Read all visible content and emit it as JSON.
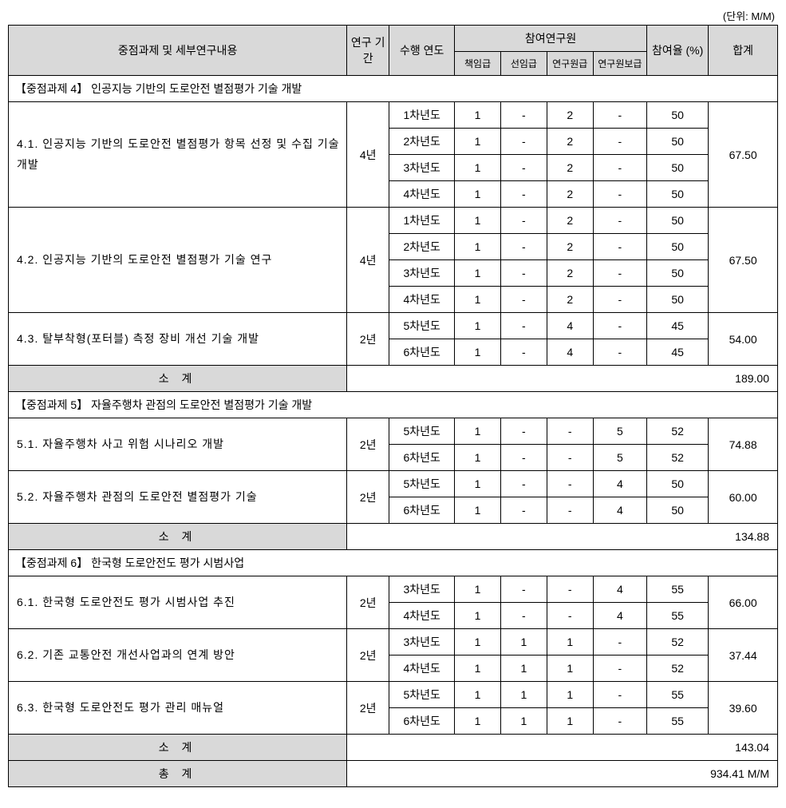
{
  "unit_label": "(단위: M/M)",
  "header": {
    "title": "중점과제 및 세부연구내용",
    "period": "연구 기간",
    "year": "수행 연도",
    "researchers": "참여연구원",
    "r1": "책임급",
    "r2": "선임급",
    "r3": "연구원급",
    "r4": "연구원보급",
    "rate": "참여율 (%)",
    "total": "합계"
  },
  "sections": [
    {
      "title": "【중점과제 4】 인공지능 기반의 도로안전 별점평가 기술 개발",
      "items": [
        {
          "label": "4.1. 인공지능 기반의 도로안전 별점평가 항목 선정 및 수집 기술 개발",
          "period": "4년",
          "total": "67.50",
          "rows": [
            {
              "year": "1차년도",
              "v": [
                "1",
                "-",
                "2",
                "-"
              ],
              "rate": "50"
            },
            {
              "year": "2차년도",
              "v": [
                "1",
                "-",
                "2",
                "-"
              ],
              "rate": "50"
            },
            {
              "year": "3차년도",
              "v": [
                "1",
                "-",
                "2",
                "-"
              ],
              "rate": "50"
            },
            {
              "year": "4차년도",
              "v": [
                "1",
                "-",
                "2",
                "-"
              ],
              "rate": "50"
            }
          ]
        },
        {
          "label": "4.2. 인공지능 기반의 도로안전 별점평가 기술 연구",
          "period": "4년",
          "total": "67.50",
          "rows": [
            {
              "year": "1차년도",
              "v": [
                "1",
                "-",
                "2",
                "-"
              ],
              "rate": "50"
            },
            {
              "year": "2차년도",
              "v": [
                "1",
                "-",
                "2",
                "-"
              ],
              "rate": "50"
            },
            {
              "year": "3차년도",
              "v": [
                "1",
                "-",
                "2",
                "-"
              ],
              "rate": "50"
            },
            {
              "year": "4차년도",
              "v": [
                "1",
                "-",
                "2",
                "-"
              ],
              "rate": "50"
            }
          ]
        },
        {
          "label": "4.3. 탈부착형(포터블) 측정 장비 개선 기술 개발",
          "period": "2년",
          "total": "54.00",
          "rows": [
            {
              "year": "5차년도",
              "v": [
                "1",
                "-",
                "4",
                "-"
              ],
              "rate": "45"
            },
            {
              "year": "6차년도",
              "v": [
                "1",
                "-",
                "4",
                "-"
              ],
              "rate": "45"
            }
          ]
        }
      ],
      "subtotal_label": "소 계",
      "subtotal_value": "189.00"
    },
    {
      "title": "【중점과제 5】 자율주행차 관점의 도로안전 별점평가 기술 개발",
      "items": [
        {
          "label": "5.1. 자율주행차 사고 위험 시나리오 개발",
          "period": "2년",
          "total": "74.88",
          "rows": [
            {
              "year": "5차년도",
              "v": [
                "1",
                "-",
                "-",
                "5"
              ],
              "rate": "52"
            },
            {
              "year": "6차년도",
              "v": [
                "1",
                "-",
                "-",
                "5"
              ],
              "rate": "52"
            }
          ]
        },
        {
          "label": "5.2. 자율주행차 관점의 도로안전 별점평가 기술",
          "period": "2년",
          "total": "60.00",
          "rows": [
            {
              "year": "5차년도",
              "v": [
                "1",
                "-",
                "-",
                "4"
              ],
              "rate": "50"
            },
            {
              "year": "6차년도",
              "v": [
                "1",
                "-",
                "-",
                "4"
              ],
              "rate": "50"
            }
          ]
        }
      ],
      "subtotal_label": "소 계",
      "subtotal_value": "134.88"
    },
    {
      "title": "【중점과제 6】 한국형 도로안전도 평가 시범사업",
      "items": [
        {
          "label": "6.1. 한국형 도로안전도 평가 시범사업 추진",
          "period": "2년",
          "total": "66.00",
          "rows": [
            {
              "year": "3차년도",
              "v": [
                "1",
                "-",
                "-",
                "4"
              ],
              "rate": "55"
            },
            {
              "year": "4차년도",
              "v": [
                "1",
                "-",
                "-",
                "4"
              ],
              "rate": "55"
            }
          ]
        },
        {
          "label": "6.2. 기존 교통안전 개선사업과의 연계 방안",
          "period": "2년",
          "total": "37.44",
          "rows": [
            {
              "year": "3차년도",
              "v": [
                "1",
                "1",
                "1",
                "-"
              ],
              "rate": "52"
            },
            {
              "year": "4차년도",
              "v": [
                "1",
                "1",
                "1",
                "-"
              ],
              "rate": "52"
            }
          ]
        },
        {
          "label": "6.3. 한국형 도로안전도 평가 관리 매뉴얼",
          "period": "2년",
          "total": "39.60",
          "rows": [
            {
              "year": "5차년도",
              "v": [
                "1",
                "1",
                "1",
                "-"
              ],
              "rate": "55"
            },
            {
              "year": "6차년도",
              "v": [
                "1",
                "1",
                "1",
                "-"
              ],
              "rate": "55"
            }
          ]
        }
      ],
      "subtotal_label": "소 계",
      "subtotal_value": "143.04"
    }
  ],
  "grand": {
    "label": "총 계",
    "value": "934.41 M/M"
  }
}
